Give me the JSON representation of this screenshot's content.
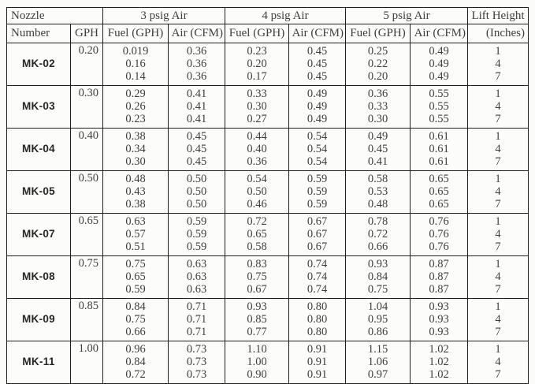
{
  "colors": {
    "background": "#fbfbf9",
    "grid_border": "#1f1f1f",
    "text": "#3e3e3e",
    "nozzle_label": "#272727"
  },
  "table": {
    "header": {
      "nozzle": "Nozzle",
      "number": "Number",
      "gph": "GPH",
      "psig3": "3 psig Air",
      "psig4": "4 psig Air",
      "psig5": "5 psig Air",
      "lift": "Lift Height",
      "lift_unit": "(Inches)",
      "fuel": "Fuel (GPH)",
      "air": "Air (CFM)"
    },
    "rows": [
      {
        "nozzle": "MK-02",
        "gph": "0.20",
        "psig3": {
          "fuel": [
            "0.019",
            "0.16",
            "0.14"
          ],
          "air": [
            "0.36",
            "0.36",
            "0.36"
          ]
        },
        "psig4": {
          "fuel": [
            "0.23",
            "0.20",
            "0.17"
          ],
          "air": [
            "0.45",
            "0.45",
            "0.45"
          ]
        },
        "psig5": {
          "fuel": [
            "0.25",
            "0.22",
            "0.20"
          ],
          "air": [
            "0.49",
            "0.49",
            "0.49"
          ]
        },
        "lift": [
          "1",
          "4",
          "7"
        ]
      },
      {
        "nozzle": "MK-03",
        "gph": "0.30",
        "psig3": {
          "fuel": [
            "0.29",
            "0.26",
            "0.23"
          ],
          "air": [
            "0.41",
            "0.41",
            "0.41"
          ]
        },
        "psig4": {
          "fuel": [
            "0.33",
            "0.30",
            "0.27"
          ],
          "air": [
            "0.49",
            "0.49",
            "0.49"
          ]
        },
        "psig5": {
          "fuel": [
            "0.36",
            "0.33",
            "0.30"
          ],
          "air": [
            "0.55",
            "0.55",
            "0.55"
          ]
        },
        "lift": [
          "1",
          "4",
          "7"
        ]
      },
      {
        "nozzle": "MK-04",
        "gph": "0.40",
        "psig3": {
          "fuel": [
            "0.38",
            "0.34",
            "0.30"
          ],
          "air": [
            "0.45",
            "0.45",
            "0.45"
          ]
        },
        "psig4": {
          "fuel": [
            "0.44",
            "0.40",
            "0.36"
          ],
          "air": [
            "0.54",
            "0.54",
            "0.54"
          ]
        },
        "psig5": {
          "fuel": [
            "0.49",
            "0.45",
            "0.41"
          ],
          "air": [
            "0.61",
            "0.61",
            "0.61"
          ]
        },
        "lift": [
          "1",
          "4",
          "7"
        ]
      },
      {
        "nozzle": "MK-05",
        "gph": "0.50",
        "psig3": {
          "fuel": [
            "0.48",
            "0.43",
            "0.38"
          ],
          "air": [
            "0.50",
            "0.50",
            "0.50"
          ]
        },
        "psig4": {
          "fuel": [
            "0.54",
            "0.50",
            "0.46"
          ],
          "air": [
            "0.59",
            "0.59",
            "0.59"
          ]
        },
        "psig5": {
          "fuel": [
            "0.58",
            "0.53",
            "0.48"
          ],
          "air": [
            "0.65",
            "0.65",
            "0.65"
          ]
        },
        "lift": [
          "1",
          "4",
          "7"
        ]
      },
      {
        "nozzle": "MK-07",
        "gph": "0.65",
        "psig3": {
          "fuel": [
            "0.63",
            "0.57",
            "0.51"
          ],
          "air": [
            "0.59",
            "0.59",
            "0.59"
          ]
        },
        "psig4": {
          "fuel": [
            "0.72",
            "0.65",
            "0.58"
          ],
          "air": [
            "0.67",
            "0.67",
            "0.67"
          ]
        },
        "psig5": {
          "fuel": [
            "0.78",
            "0.72",
            "0.66"
          ],
          "air": [
            "0.76",
            "0.76",
            "0.76"
          ]
        },
        "lift": [
          "1",
          "4",
          "7"
        ]
      },
      {
        "nozzle": "MK-08",
        "gph": "0.75",
        "psig3": {
          "fuel": [
            "0.75",
            "0.65",
            "0.59"
          ],
          "air": [
            "0.63",
            "0.63",
            "0.63"
          ]
        },
        "psig4": {
          "fuel": [
            "0.83",
            "0.75",
            "0.67"
          ],
          "air": [
            "0.74",
            "0.74",
            "0.74"
          ]
        },
        "psig5": {
          "fuel": [
            "0.93",
            "0.84",
            "0.75"
          ],
          "air": [
            "0.87",
            "0.87",
            "0.87"
          ]
        },
        "lift": [
          "1",
          "4",
          "7"
        ]
      },
      {
        "nozzle": "MK-09",
        "gph": "0.85",
        "psig3": {
          "fuel": [
            "0.84",
            "0.75",
            "0.66"
          ],
          "air": [
            "0.71",
            "0.71",
            "0.71"
          ]
        },
        "psig4": {
          "fuel": [
            "0.93",
            "0.85",
            "0.77"
          ],
          "air": [
            "0.80",
            "0.80",
            "0.80"
          ]
        },
        "psig5": {
          "fuel": [
            "1.04",
            "0.95",
            "0.86"
          ],
          "air": [
            "0.93",
            "0.93",
            "0.93"
          ]
        },
        "lift": [
          "1",
          "4",
          "7"
        ]
      },
      {
        "nozzle": "MK-11",
        "gph": "1.00",
        "psig3": {
          "fuel": [
            "0.96",
            "0.84",
            "0.72"
          ],
          "air": [
            "0.73",
            "0.73",
            "0.73"
          ]
        },
        "psig4": {
          "fuel": [
            "1.10",
            "1.00",
            "0.90"
          ],
          "air": [
            "0.91",
            "0.91",
            "0.91"
          ]
        },
        "psig5": {
          "fuel": [
            "1.15",
            "1.06",
            "0.97"
          ],
          "air": [
            "1.02",
            "1.02",
            "1.02"
          ]
        },
        "lift": [
          "1",
          "4",
          "7"
        ]
      }
    ]
  }
}
